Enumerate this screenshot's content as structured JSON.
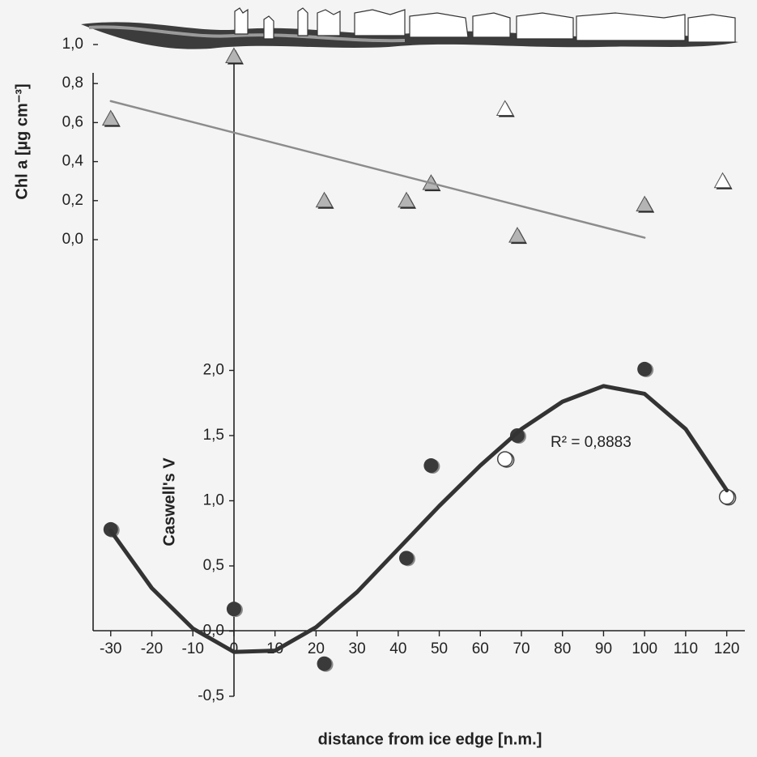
{
  "chart_data": [
    {
      "type": "scatter",
      "y_label": "Chl a [µg cm⁻³]",
      "xlim": [
        -35,
        125
      ],
      "ylim": [
        0,
        1
      ],
      "yticks": [
        {
          "value": 0,
          "label": "0,0"
        },
        {
          "value": 0.2,
          "label": "0,2"
        },
        {
          "value": 0.4,
          "label": "0,4"
        },
        {
          "value": 0.6,
          "label": "0,6"
        },
        {
          "value": 0.8,
          "label": "0,8"
        },
        {
          "value": 1,
          "label": "1,0"
        }
      ],
      "series": [
        {
          "marker": "triangle",
          "color": "#b4b4b4",
          "x": [
            -30,
            0,
            22,
            42,
            48,
            69,
            100
          ],
          "values": [
            0.62,
            0.94,
            0.2,
            0.2,
            0.29,
            0.02,
            0.18
          ]
        },
        {
          "marker": "triangle-open",
          "color": "#ffffff",
          "x": [
            66,
            119
          ],
          "values": [
            0.67,
            0.3
          ]
        },
        {
          "marker": "line",
          "color": "#8c8c8c",
          "x": [
            -30,
            100
          ],
          "values": [
            0.71,
            0.01
          ]
        }
      ]
    },
    {
      "type": "scatter",
      "y_label": "Caswell's V",
      "x_label": "distance from ice edge [n.m.]",
      "annotation": "R² = 0,8883",
      "xlim": [
        -35,
        125
      ],
      "xticks": [
        -30,
        -20,
        -10,
        0,
        10,
        20,
        30,
        40,
        50,
        60,
        70,
        80,
        90,
        100,
        110,
        120
      ],
      "ylim": [
        -0.5,
        2
      ],
      "yticks": [
        {
          "value": -0.5,
          "label": "-0,5"
        },
        {
          "value": 0,
          "label": "0,0"
        },
        {
          "value": 0.5,
          "label": "0,5"
        },
        {
          "value": 1,
          "label": "1,0"
        },
        {
          "value": 1.5,
          "label": "1,5"
        },
        {
          "value": 2,
          "label": "2,0"
        }
      ],
      "series": [
        {
          "marker": "circle",
          "color": "#3a3a3a",
          "x": [
            -30,
            0,
            22,
            42,
            48,
            69,
            100
          ],
          "values": [
            0.78,
            0.17,
            -0.25,
            0.56,
            1.27,
            1.5,
            2.01
          ]
        },
        {
          "marker": "circle-open",
          "color": "#ffffff",
          "x": [
            66,
            120
          ],
          "values": [
            1.32,
            1.03
          ]
        },
        {
          "marker": "line",
          "color": "#333333",
          "x": [
            -30,
            -20,
            -10,
            0,
            10,
            20,
            30,
            40,
            50,
            60,
            70,
            80,
            90,
            100,
            110,
            120
          ],
          "values": [
            0.77,
            0.33,
            0.02,
            -0.16,
            -0.15,
            0.03,
            0.3,
            0.63,
            0.96,
            1.27,
            1.55,
            1.76,
            1.88,
            1.82,
            1.55,
            1.08
          ]
        }
      ]
    }
  ]
}
